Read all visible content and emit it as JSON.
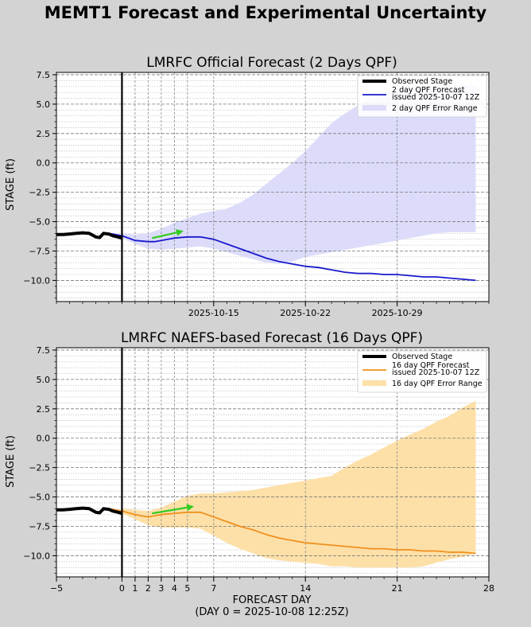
{
  "figure": {
    "title": "MEMT1 Forecast and Experimental Uncertainty"
  },
  "colors": {
    "observed": "#000000",
    "forecast_2day": "#1a1acc",
    "band_2day": "#dcdcfa",
    "forecast_16day": "#f0901e",
    "band_16day": "#fde0a8",
    "trend_arrow": "#33cc22",
    "background": "#d3d3d3"
  },
  "chart_data": [
    {
      "type": "line",
      "title": "LMRFC Official Forecast (2 Days QPF)",
      "xlabel": "",
      "ylabel": "STAGE (ft)",
      "xlim": [
        -5,
        28
      ],
      "ylim": [
        -11.8,
        7.7
      ],
      "yticks": [
        "7.5",
        "5.0",
        "2.5",
        "0.0",
        "−2.5",
        "−5.0",
        "−7.5",
        "−10.0"
      ],
      "ytick_values": [
        7.5,
        5.0,
        2.5,
        0.0,
        -2.5,
        -5.0,
        -7.5,
        -10.0
      ],
      "xticks": [
        {
          "label": "2025-10-15",
          "day": 7
        },
        {
          "label": "2025-10-22",
          "day": 14
        },
        {
          "label": "2025-10-29",
          "day": 21
        }
      ],
      "grid": true,
      "legend_position": "top-right",
      "legend": [
        {
          "label": "Observed Stage",
          "kind": "line-thick"
        },
        {
          "label": "2 day QPF Forecast",
          "label2": "issued 2025-10-07 12Z",
          "kind": "line"
        },
        {
          "label": "2 day QPF Error Range",
          "kind": "patch"
        }
      ],
      "series": [
        {
          "name": "Observed Stage",
          "x": [
            -5,
            -4.5,
            -4,
            -3.5,
            -3,
            -2.5,
            -2,
            -1.7,
            -1.4,
            -1,
            -0.7,
            -0.3,
            0
          ],
          "y": [
            -6.1,
            -6.1,
            -6.05,
            -6.0,
            -5.95,
            -6.0,
            -6.3,
            -6.35,
            -6.0,
            -6.05,
            -6.2,
            -6.3,
            -6.4
          ]
        },
        {
          "name": "2 day QPF Forecast",
          "x": [
            -1,
            0,
            1,
            2,
            2.5,
            3,
            4,
            5,
            6,
            7,
            8,
            9,
            10,
            11,
            12,
            13,
            14,
            15,
            16,
            17,
            18,
            19,
            20,
            21,
            22,
            23,
            24,
            25,
            26,
            27
          ],
          "y": [
            -6.0,
            -6.2,
            -6.6,
            -6.7,
            -6.7,
            -6.6,
            -6.4,
            -6.3,
            -6.3,
            -6.5,
            -6.9,
            -7.3,
            -7.7,
            -8.1,
            -8.4,
            -8.6,
            -8.8,
            -8.9,
            -9.1,
            -9.3,
            -9.4,
            -9.4,
            -9.5,
            -9.5,
            -9.6,
            -9.7,
            -9.7,
            -9.8,
            -9.9,
            -10.0
          ]
        },
        {
          "name": "2 day QPF Error Range",
          "x": [
            0,
            1,
            2,
            3,
            4,
            5,
            6,
            7,
            8,
            9,
            10,
            11,
            12,
            13,
            14,
            15,
            16,
            17,
            18,
            19,
            20,
            21,
            22,
            23,
            24,
            25,
            26,
            27
          ],
          "upper": [
            -6.0,
            -6.1,
            -6.0,
            -5.6,
            -5.1,
            -4.7,
            -4.3,
            -4.1,
            -3.9,
            -3.4,
            -2.7,
            -1.8,
            -0.9,
            0.0,
            1.0,
            2.2,
            3.4,
            4.2,
            4.9,
            5.5,
            6.0,
            6.3,
            6.5,
            6.6,
            6.6,
            6.6,
            6.6,
            6.6
          ],
          "lower": [
            -6.4,
            -6.9,
            -7.3,
            -7.4,
            -7.3,
            -7.2,
            -7.1,
            -7.3,
            -7.6,
            -7.9,
            -8.2,
            -8.5,
            -8.6,
            -8.4,
            -8.0,
            -7.8,
            -7.6,
            -7.4,
            -7.2,
            -7.0,
            -6.8,
            -6.6,
            -6.4,
            -6.2,
            -6.0,
            -5.9,
            -5.9,
            -5.9
          ]
        },
        {
          "name": "Trend Arrow",
          "x": [
            2.3,
            4.7
          ],
          "y": [
            -6.4,
            -5.8
          ]
        }
      ]
    },
    {
      "type": "line",
      "title": "LMRFC NAEFS-based Forecast (16 Days QPF)",
      "xlabel": "FORECAST DAY",
      "xlabel2": "(DAY 0 = 2025-10-08 12:25Z)",
      "ylabel": "STAGE (ft)",
      "xlim": [
        -5,
        28
      ],
      "ylim": [
        -11.8,
        7.7
      ],
      "yticks": [
        "7.5",
        "5.0",
        "2.5",
        "0.0",
        "−2.5",
        "−5.0",
        "−7.5",
        "−10.0"
      ],
      "ytick_values": [
        7.5,
        5.0,
        2.5,
        0.0,
        -2.5,
        -5.0,
        -7.5,
        -10.0
      ],
      "xticks": [
        {
          "label": "−5",
          "day": -5
        },
        {
          "label": "0",
          "day": 0
        },
        {
          "label": "1",
          "day": 1
        },
        {
          "label": "2",
          "day": 2
        },
        {
          "label": "3",
          "day": 3
        },
        {
          "label": "4",
          "day": 4
        },
        {
          "label": "5",
          "day": 5
        },
        {
          "label": "7",
          "day": 7
        },
        {
          "label": "14",
          "day": 14
        },
        {
          "label": "21",
          "day": 21
        },
        {
          "label": "28",
          "day": 28
        }
      ],
      "grid": true,
      "legend_position": "top-right",
      "legend": [
        {
          "label": "Observed Stage",
          "kind": "line-thick"
        },
        {
          "label": "16 day QPF Forecast",
          "label2": "issued 2025-10-07 12Z",
          "kind": "line"
        },
        {
          "label": "16 day QPF Error Range",
          "kind": "patch"
        }
      ],
      "series": [
        {
          "name": "Observed Stage",
          "x": [
            -5,
            -4.5,
            -4,
            -3.5,
            -3,
            -2.5,
            -2,
            -1.7,
            -1.4,
            -1,
            -0.7,
            -0.3,
            0
          ],
          "y": [
            -6.1,
            -6.1,
            -6.05,
            -6.0,
            -5.95,
            -6.0,
            -6.3,
            -6.35,
            -6.0,
            -6.05,
            -6.2,
            -6.3,
            -6.4
          ]
        },
        {
          "name": "16 day QPF Forecast",
          "x": [
            -1,
            0,
            1,
            2,
            2.5,
            3,
            4,
            5,
            6,
            7,
            8,
            9,
            10,
            11,
            12,
            13,
            14,
            15,
            16,
            17,
            18,
            19,
            20,
            21,
            22,
            23,
            24,
            25,
            26,
            27
          ],
          "y": [
            -6.0,
            -6.2,
            -6.5,
            -6.7,
            -6.6,
            -6.5,
            -6.4,
            -6.3,
            -6.3,
            -6.7,
            -7.1,
            -7.5,
            -7.8,
            -8.2,
            -8.5,
            -8.7,
            -8.9,
            -9.0,
            -9.1,
            -9.2,
            -9.3,
            -9.4,
            -9.4,
            -9.5,
            -9.5,
            -9.6,
            -9.6,
            -9.7,
            -9.7,
            -9.8
          ]
        },
        {
          "name": "16 day QPF Error Range",
          "x": [
            0,
            1,
            2,
            3,
            4,
            5,
            6,
            7,
            8,
            9,
            10,
            11,
            12,
            13,
            14,
            15,
            16,
            17,
            18,
            19,
            20,
            21,
            22,
            23,
            24,
            25,
            26,
            27
          ],
          "upper": [
            -6.0,
            -6.1,
            -6.2,
            -5.9,
            -5.4,
            -4.9,
            -4.7,
            -4.7,
            -4.6,
            -4.5,
            -4.4,
            -4.2,
            -4.0,
            -3.8,
            -3.6,
            -3.4,
            -3.2,
            -2.5,
            -1.9,
            -1.4,
            -0.8,
            -0.2,
            0.3,
            0.8,
            1.4,
            1.9,
            2.6,
            3.2
          ],
          "lower": [
            -6.4,
            -6.9,
            -7.4,
            -7.6,
            -7.6,
            -7.6,
            -7.7,
            -8.3,
            -8.9,
            -9.4,
            -9.8,
            -10.2,
            -10.4,
            -10.5,
            -10.6,
            -10.7,
            -10.9,
            -10.9,
            -11.0,
            -11.0,
            -11.0,
            -11.0,
            -11.0,
            -10.9,
            -10.6,
            -10.3,
            -10.1,
            -9.8
          ]
        },
        {
          "name": "Trend Arrow",
          "x": [
            2.3,
            5.5
          ],
          "y": [
            -6.4,
            -5.8
          ]
        }
      ]
    }
  ]
}
